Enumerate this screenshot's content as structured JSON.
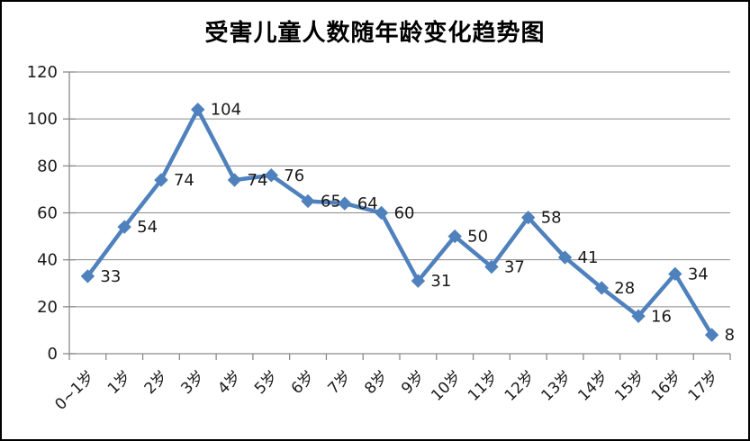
{
  "window": {
    "background_color": "#ffffff",
    "border_color": "#000000"
  },
  "chart_data": {
    "type": "line",
    "title": "受害儿童人数随年龄变化趋势图",
    "categories": [
      "0~1岁",
      "1岁",
      "2岁",
      "3岁",
      "4岁",
      "5岁",
      "6岁",
      "7岁",
      "8岁",
      "9岁",
      "10岁",
      "11岁",
      "12岁",
      "13岁",
      "14岁",
      "15岁",
      "16岁",
      "17岁"
    ],
    "values": [
      33,
      54,
      74,
      104,
      74,
      76,
      65,
      64,
      60,
      31,
      50,
      37,
      58,
      41,
      28,
      16,
      34,
      8
    ],
    "xlabel": "",
    "ylabel": "",
    "ylim": [
      0,
      120
    ],
    "ytick_step": 20,
    "yticks": [
      0,
      20,
      40,
      60,
      80,
      100,
      120
    ],
    "grid": true,
    "legend_position": "none",
    "data_labels": true,
    "marker": "diamond",
    "series_color": "#4F81BD",
    "gridline_color": "#8a8a8a",
    "axis_color": "#8a8a8a",
    "label_color": "#1a1a1a"
  }
}
